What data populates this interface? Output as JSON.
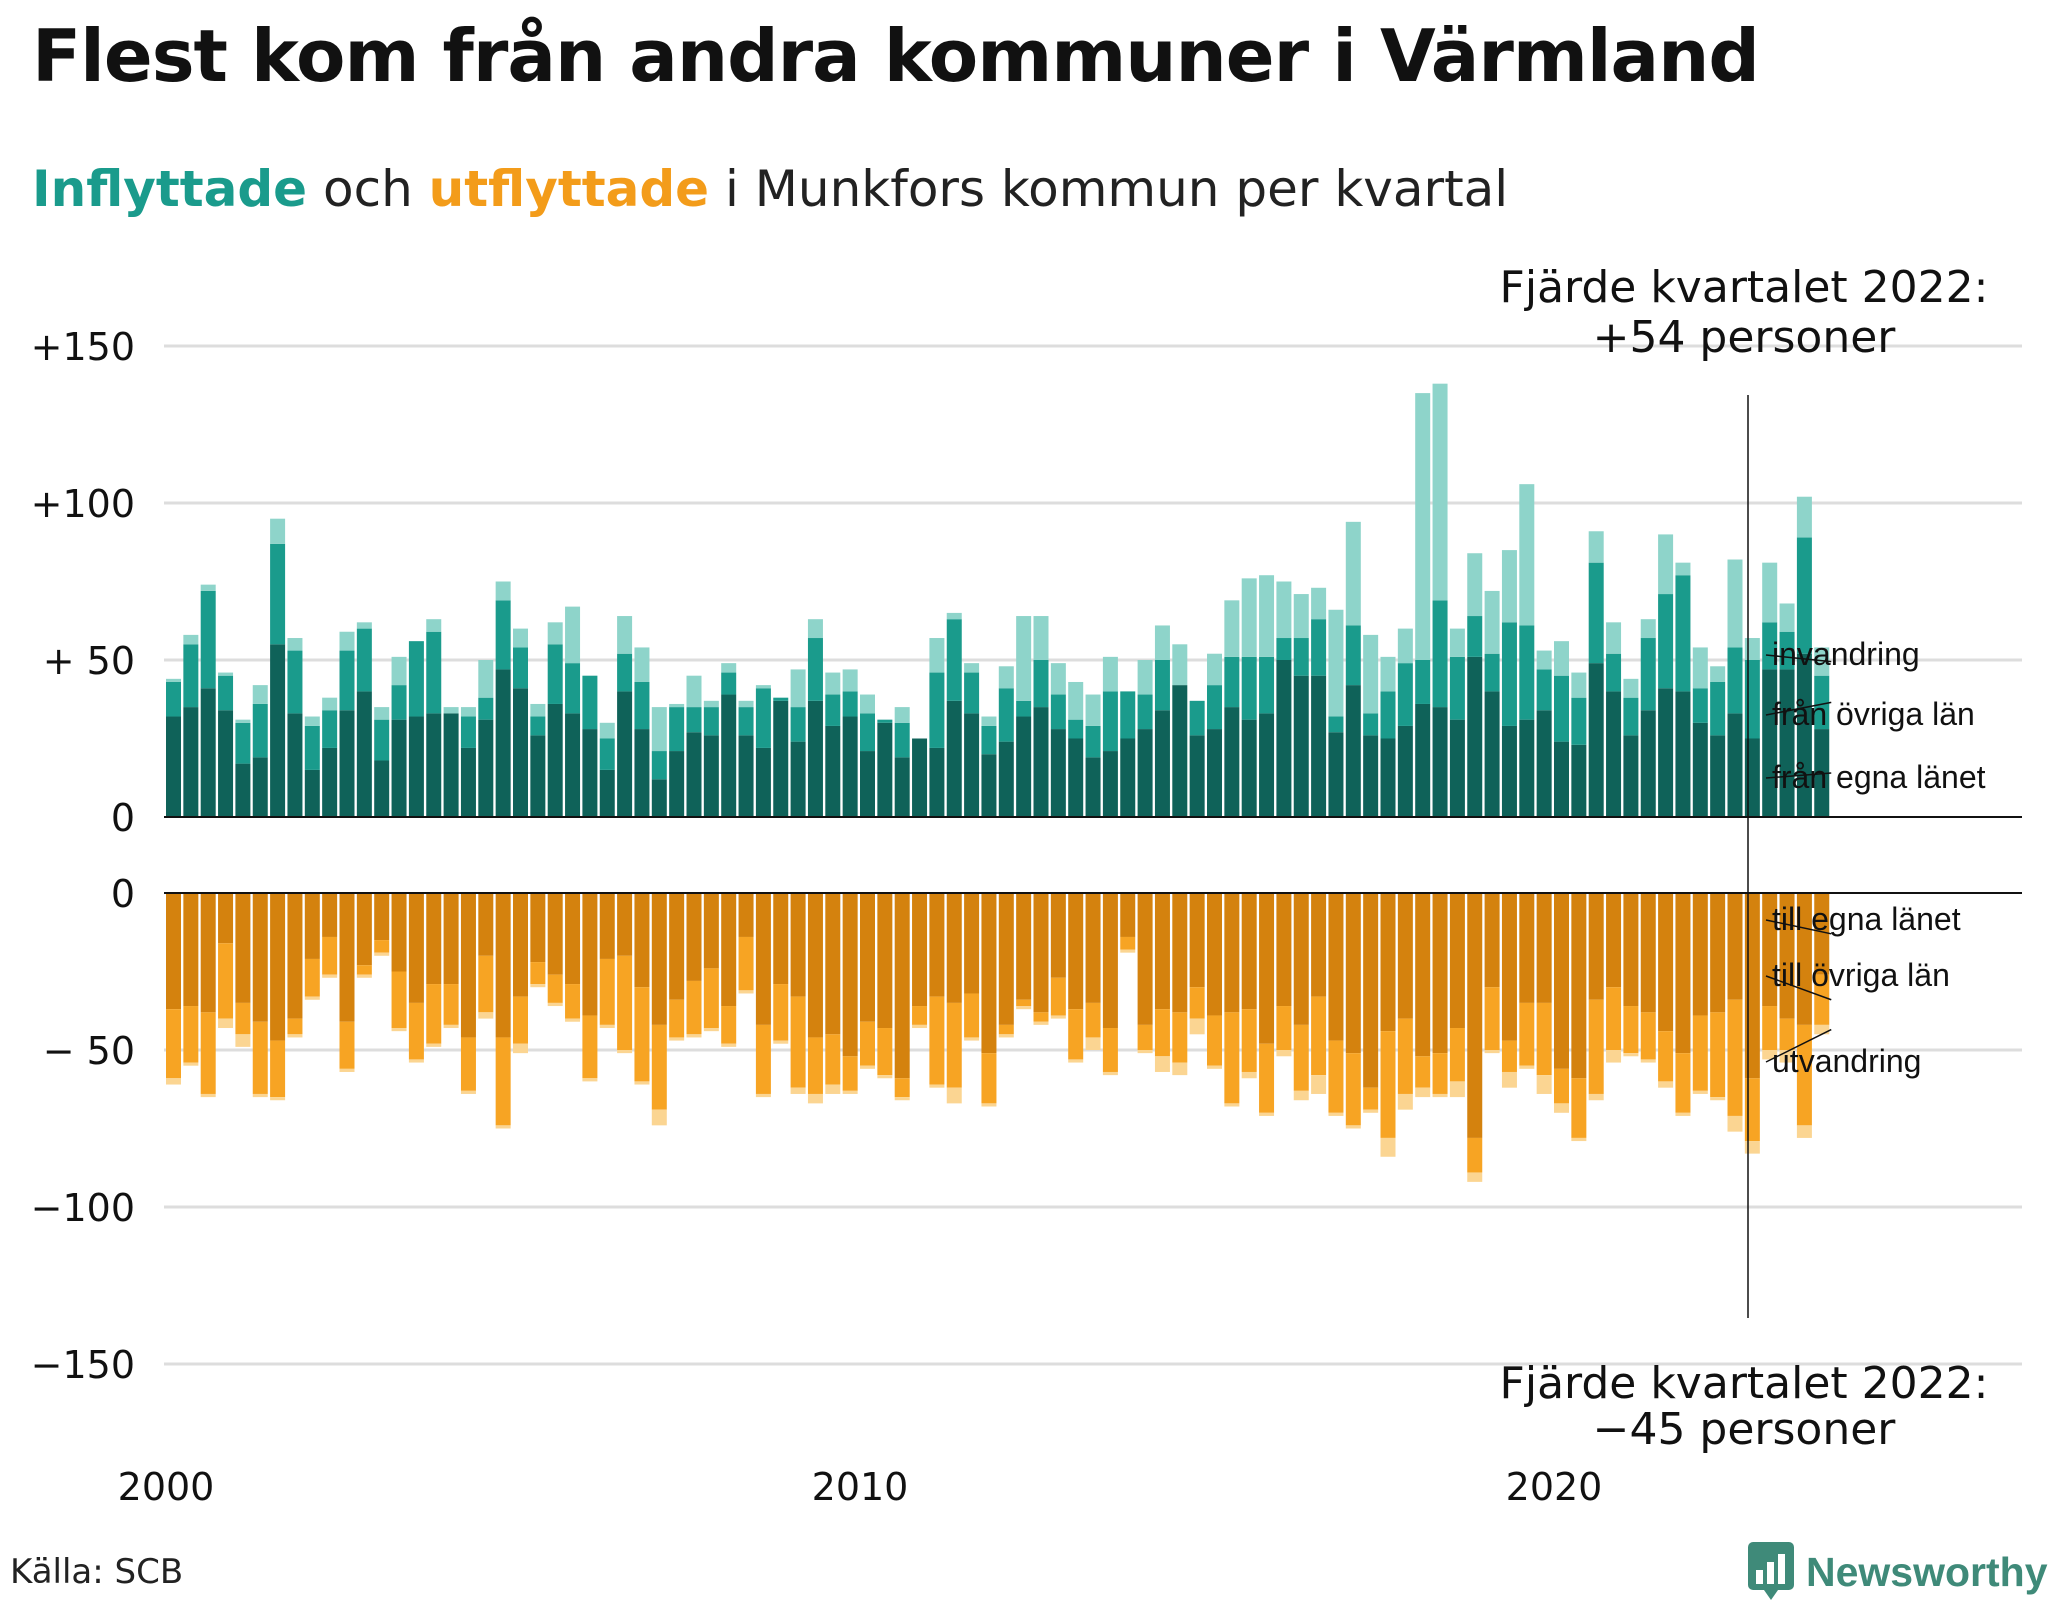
{
  "header": {
    "title": "Flest kom från andra kommuner i Värmland",
    "subtitle_in": "Inflyttade",
    "subtitle_mid": " och ",
    "subtitle_out": "utflyttade",
    "subtitle_rest": " i Munkfors kommun per kvartal"
  },
  "annotations": {
    "top_line1": "Fjärde kvartalet 2022:",
    "top_line2": "+54 personer",
    "bottom_line1": "Fjärde kvartalet 2022:",
    "bottom_line2": "−45 personer"
  },
  "footer": {
    "source": "Källa: SCB",
    "logo": "Newsworthy"
  },
  "colors": {
    "in_own": "#0f6259",
    "in_other": "#1a9b8c",
    "in_immigration": "#8ed4ca",
    "out_own": "#d4820e",
    "out_other": "#f7a423",
    "out_emigration": "#fbd592",
    "grid": "#dddddd",
    "axis": "#111111",
    "brand": "#3f8a79"
  },
  "chart_data": [
    {
      "type": "bar",
      "stacked": true,
      "title": "Inflyttade",
      "y_ticks": [
        "+150",
        "+100",
        "+ 50",
        "0"
      ],
      "ylim": [
        0,
        150
      ],
      "x_ticks": [
        "2000",
        "2010",
        "2020"
      ],
      "series": [
        {
          "name": "från egna länet",
          "values": [
            32,
            35,
            41,
            34,
            17,
            19,
            55,
            33,
            15,
            22,
            34,
            40,
            18,
            31,
            32,
            33,
            33,
            22,
            31,
            47,
            41,
            26,
            36,
            33,
            28,
            15,
            40,
            28,
            12,
            21,
            27,
            26,
            39,
            26,
            22,
            37,
            24,
            37,
            29,
            32,
            21,
            30,
            19,
            25,
            22,
            37,
            33,
            20,
            24,
            32,
            35,
            28,
            25,
            19,
            21,
            25,
            28,
            34,
            42,
            26,
            28,
            35,
            31,
            33,
            50,
            45,
            45,
            27,
            42,
            26,
            25,
            29,
            36,
            35,
            31,
            51,
            40,
            29,
            31,
            34,
            24,
            23,
            49,
            40,
            26,
            34,
            41,
            40,
            30,
            26,
            33,
            25,
            47,
            47,
            52,
            28
          ]
        },
        {
          "name": "från övriga län",
          "values": [
            11,
            20,
            31,
            11,
            13,
            17,
            32,
            20,
            14,
            12,
            19,
            20,
            13,
            11,
            24,
            26,
            0,
            10,
            7,
            22,
            13,
            6,
            19,
            16,
            17,
            10,
            12,
            15,
            9,
            14,
            8,
            9,
            7,
            9,
            19,
            1,
            11,
            20,
            10,
            8,
            12,
            1,
            11,
            0,
            24,
            26,
            13,
            9,
            17,
            5,
            15,
            11,
            6,
            10,
            19,
            15,
            11,
            16,
            0,
            11,
            14,
            16,
            20,
            18,
            7,
            12,
            18,
            5,
            19,
            7,
            15,
            20,
            14,
            34,
            20,
            13,
            12,
            33,
            30,
            13,
            21,
            15,
            32,
            12,
            12,
            23,
            30,
            37,
            11,
            17,
            21,
            25,
            15,
            12,
            37,
            17
          ]
        },
        {
          "name": "invandring",
          "values": [
            1,
            3,
            2,
            1,
            1,
            6,
            8,
            4,
            3,
            4,
            6,
            2,
            4,
            9,
            0,
            4,
            2,
            3,
            12,
            6,
            6,
            4,
            7,
            18,
            0,
            5,
            12,
            11,
            14,
            1,
            10,
            2,
            3,
            2,
            1,
            0,
            12,
            6,
            7,
            7,
            6,
            0,
            5,
            0,
            11,
            2,
            3,
            3,
            7,
            27,
            14,
            10,
            12,
            10,
            11,
            0,
            11,
            11,
            13,
            0,
            10,
            18,
            25,
            26,
            18,
            14,
            10,
            34,
            33,
            25,
            11,
            11,
            85,
            69,
            9,
            20,
            20,
            23,
            45,
            6,
            11,
            8,
            10,
            10,
            6,
            6,
            19,
            4,
            13,
            5,
            28,
            7,
            19,
            9,
            13,
            9
          ]
        }
      ]
    },
    {
      "type": "bar",
      "stacked": true,
      "title": "Utflyttade",
      "y_ticks": [
        "0",
        "− 50",
        "−100",
        "−150"
      ],
      "ylim": [
        -150,
        0
      ],
      "x_ticks": [
        "2000",
        "2010",
        "2020"
      ],
      "series": [
        {
          "name": "till egna länet",
          "values": [
            -37,
            -36,
            -38,
            -16,
            -35,
            -41,
            -47,
            -40,
            -21,
            -14,
            -41,
            -23,
            -15,
            -25,
            -35,
            -29,
            -29,
            -46,
            -20,
            -46,
            -33,
            -22,
            -26,
            -29,
            -39,
            -21,
            -20,
            -30,
            -42,
            -34,
            -28,
            -24,
            -36,
            -14,
            -42,
            -29,
            -33,
            -46,
            -45,
            -52,
            -41,
            -43,
            -59,
            -36,
            -33,
            -35,
            -32,
            -51,
            -42,
            -34,
            -38,
            -27,
            -37,
            -35,
            -43,
            -14,
            -42,
            -37,
            -38,
            -30,
            -39,
            -38,
            -37,
            -48,
            -36,
            -42,
            -33,
            -47,
            -51,
            -62,
            -44,
            -40,
            -52,
            -51,
            -43,
            -78,
            -30,
            -47,
            -35,
            -35,
            -56,
            -59,
            -34,
            -30,
            -36,
            -38,
            -44,
            -51,
            -39,
            -38,
            -34,
            -59,
            -36,
            -40,
            -42,
            -26
          ]
        },
        {
          "name": "till övriga län",
          "values": [
            -22,
            -18,
            -26,
            -24,
            -10,
            -23,
            -18,
            -5,
            -12,
            -12,
            -15,
            -3,
            -4,
            -18,
            -18,
            -19,
            -13,
            -17,
            -18,
            -28,
            -15,
            -7,
            -9,
            -11,
            -20,
            -21,
            -30,
            -30,
            -27,
            -12,
            -17,
            -19,
            -12,
            -17,
            -22,
            -18,
            -29,
            -18,
            -16,
            -11,
            -14,
            -15,
            -6,
            -6,
            -28,
            -27,
            -14,
            -16,
            -3,
            -2,
            -3,
            -12,
            -16,
            -11,
            -14,
            -4,
            -8,
            -15,
            -16,
            -10,
            -16,
            -29,
            -20,
            -22,
            -14,
            -21,
            -25,
            -23,
            -23,
            -7,
            -34,
            -24,
            -10,
            -13,
            -17,
            -11,
            -20,
            -10,
            -20,
            -23,
            -11,
            -19,
            -30,
            -20,
            -15,
            -15,
            -16,
            -19,
            -24,
            -27,
            -37,
            -20,
            -14,
            -10,
            -32,
            -16
          ]
        },
        {
          "name": "utvandring",
          "values": [
            -2,
            -1,
            -1,
            -3,
            -4,
            -1,
            -1,
            -1,
            -1,
            -1,
            -1,
            -1,
            -1,
            -1,
            -1,
            -1,
            -1,
            -1,
            -2,
            -1,
            -3,
            -1,
            -1,
            -1,
            -1,
            -1,
            -1,
            -1,
            -5,
            -1,
            -1,
            -1,
            -1,
            -1,
            -1,
            -1,
            -2,
            -3,
            -3,
            -1,
            -1,
            -1,
            -1,
            -1,
            -1,
            -5,
            -1,
            -1,
            -1,
            -1,
            -1,
            -1,
            -1,
            -4,
            -1,
            -1,
            -1,
            -5,
            -4,
            -5,
            -1,
            -1,
            -2,
            -1,
            -2,
            -3,
            -6,
            -1,
            -1,
            -1,
            -6,
            -5,
            -3,
            -1,
            -5,
            -3,
            -1,
            -5,
            -1,
            -6,
            -3,
            -1,
            -2,
            -4,
            -1,
            -1,
            -2,
            -1,
            -1,
            -1,
            -5,
            -4,
            -3,
            -4,
            -4,
            -3
          ]
        }
      ]
    }
  ]
}
